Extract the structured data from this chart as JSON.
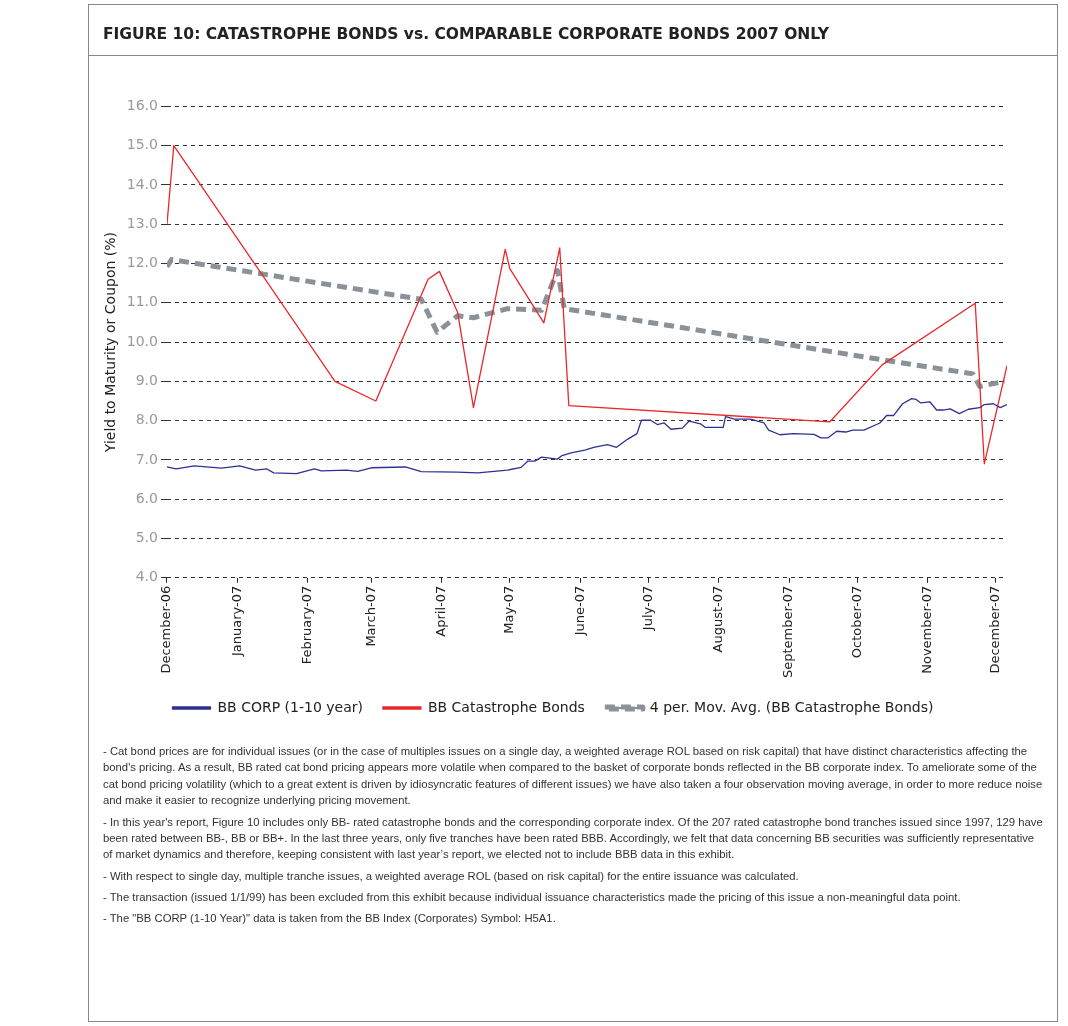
{
  "chart_data": {
    "type": "line",
    "title": "FIGURE 10: CATASTROPHE BONDS vs. COMPARABLE CORPORATE BONDS 2007 ONLY",
    "ylabel": "Yield to Maturity or Coupon (%)",
    "xlim": [
      "2006-12-01",
      "2007-12-06"
    ],
    "xticks": [
      {
        "value": "2006-12-01",
        "label": "December-06"
      },
      {
        "value": "2007-01-01",
        "label": "January-07"
      },
      {
        "value": "2007-02-01",
        "label": "February-07"
      },
      {
        "value": "2007-03-01",
        "label": "March-07"
      },
      {
        "value": "2007-04-01",
        "label": "April-07"
      },
      {
        "value": "2007-05-01",
        "label": "May-07"
      },
      {
        "value": "2007-06-01",
        "label": "June-07"
      },
      {
        "value": "2007-07-01",
        "label": "July-07"
      },
      {
        "value": "2007-08-01",
        "label": "August-07"
      },
      {
        "value": "2007-09-01",
        "label": "September-07"
      },
      {
        "value": "2007-10-01",
        "label": "October-07"
      },
      {
        "value": "2007-11-01",
        "label": "November-07"
      },
      {
        "value": "2007-12-01",
        "label": "December-07"
      }
    ],
    "ylim": [
      4,
      16
    ],
    "yticks": [
      {
        "value": 4,
        "label": "4.0"
      },
      {
        "value": 5,
        "label": "5.0"
      },
      {
        "value": 6,
        "label": "6.0"
      },
      {
        "value": 7,
        "label": "7.0"
      },
      {
        "value": 8,
        "label": "8.0"
      },
      {
        "value": 9,
        "label": "9.0"
      },
      {
        "value": 10,
        "label": "10.0"
      },
      {
        "value": 11,
        "label": "11.0"
      },
      {
        "value": 12,
        "label": "12.0"
      },
      {
        "value": 13,
        "label": "13.0"
      },
      {
        "value": 14,
        "label": "14.0"
      },
      {
        "value": 15,
        "label": "15.0"
      },
      {
        "value": 16,
        "label": "16.0"
      }
    ],
    "grid": "y",
    "legend": "bottom",
    "marker": "none",
    "series": [
      {
        "name": "BB CORP (1-10 year)",
        "color": "#2e3192",
        "line_style": "solid",
        "x": [
          "2006-12-01",
          "2006-12-05",
          "2006-12-13",
          "2006-12-25",
          "2007-01-02",
          "2007-01-09",
          "2007-01-14",
          "2007-01-17",
          "2007-01-27",
          "2007-02-04",
          "2007-02-07",
          "2007-02-18",
          "2007-02-23",
          "2007-03-01",
          "2007-03-16",
          "2007-03-23",
          "2007-04-08",
          "2007-04-17",
          "2007-04-30",
          "2007-05-06",
          "2007-05-09",
          "2007-05-12",
          "2007-05-15",
          "2007-05-22",
          "2007-05-24",
          "2007-05-28",
          "2007-06-03",
          "2007-06-07",
          "2007-06-13",
          "2007-06-17",
          "2007-06-22",
          "2007-06-26",
          "2007-06-28",
          "2007-07-02",
          "2007-07-05",
          "2007-07-08",
          "2007-07-11",
          "2007-07-16",
          "2007-07-19",
          "2007-07-24",
          "2007-07-26",
          "2007-08-03",
          "2007-08-04",
          "2007-08-08",
          "2007-08-15",
          "2007-08-21",
          "2007-08-23",
          "2007-08-28",
          "2007-09-03",
          "2007-09-12",
          "2007-09-15",
          "2007-09-18",
          "2007-09-22",
          "2007-09-26",
          "2007-09-29",
          "2007-10-04",
          "2007-10-11",
          "2007-10-14",
          "2007-10-17",
          "2007-10-21",
          "2007-10-25",
          "2007-10-27",
          "2007-10-29",
          "2007-11-02",
          "2007-11-05",
          "2007-11-08",
          "2007-11-11",
          "2007-11-15",
          "2007-11-19",
          "2007-11-24",
          "2007-11-26",
          "2007-11-30",
          "2007-12-03",
          "2007-12-06"
        ],
        "values": [
          6.82,
          6.77,
          6.85,
          6.79,
          6.85,
          6.74,
          6.77,
          6.67,
          6.65,
          6.77,
          6.72,
          6.74,
          6.71,
          6.8,
          6.82,
          6.7,
          6.69,
          6.67,
          6.74,
          6.81,
          6.97,
          6.97,
          7.07,
          7.02,
          7.11,
          7.18,
          7.25,
          7.32,
          7.39,
          7.32,
          7.53,
          7.67,
          8.01,
          8.01,
          7.9,
          7.94,
          7.78,
          7.81,
          7.99,
          7.92,
          7.83,
          7.83,
          8.1,
          8.04,
          8.04,
          7.94,
          7.76,
          7.64,
          7.67,
          7.65,
          7.56,
          7.56,
          7.73,
          7.71,
          7.76,
          7.76,
          7.94,
          8.13,
          8.13,
          8.43,
          8.56,
          8.54,
          8.45,
          8.48,
          8.27,
          8.27,
          8.3,
          8.18,
          8.29,
          8.33,
          8.41,
          8.43,
          8.33,
          8.41
        ]
      },
      {
        "name": "BB Catastrophe Bonds",
        "color": "#e8282b",
        "line_style": "solid",
        "x": [
          "2006-12-01",
          "2006-12-04",
          "2007-02-13",
          "2007-03-03",
          "2007-03-26",
          "2007-03-31",
          "2007-04-08",
          "2007-04-15",
          "2007-04-29",
          "2007-05-01",
          "2007-05-16",
          "2007-05-23",
          "2007-05-27",
          "2007-09-19",
          "2007-10-12",
          "2007-11-22",
          "2007-11-26",
          "2007-12-06"
        ],
        "values": [
          13.0,
          15.0,
          9.0,
          8.5,
          11.6,
          11.8,
          10.76,
          8.33,
          12.36,
          11.87,
          10.49,
          12.4,
          8.38,
          7.97,
          9.42,
          10.99,
          6.9,
          9.4
        ]
      },
      {
        "name": "4 per. Mov. Avg. (BB Catastrophe Bonds)",
        "color": "#8a9199",
        "line_style": "dashed",
        "x": [
          "2006-12-01",
          "2006-12-03",
          "2007-03-23",
          "2007-03-30",
          "2007-04-08",
          "2007-04-15",
          "2007-04-30",
          "2007-05-15",
          "2007-05-22",
          "2007-05-25",
          "2007-10-13",
          "2007-11-21",
          "2007-11-24",
          "2007-12-05"
        ],
        "values": [
          11.92,
          12.1,
          11.09,
          10.25,
          10.67,
          10.62,
          10.85,
          10.81,
          11.82,
          10.85,
          9.54,
          9.19,
          8.87,
          9.0
        ]
      }
    ],
    "annotations": [
      "- Cat bond prices are for individual issues (or in the case of multiples issues on a single day, a weighted average ROL based on risk capital) that have distinct characteristics affecting the bond's pricing.  As a result, BB rated cat bond pricing appears more volatile when compared to the basket of corporate bonds reflected in the BB corporate index.  To ameliorate some of the cat bond pricing volatility (which to a great extent is driven by idiosyncratic features of different issues) we have also taken a four observation moving average, in order to more reduce noise and make it easier to recognize underlying pricing movement.",
      "- In this year's report, Figure 10 includes only BB- rated catastrophe bonds and the corresponding corporate index.  Of the 207 rated catastrophe bond tranches issued since 1997, 129 have been rated between BB-, BB or BB+.  In the last three years, only five tranches have been rated BBB.  Accordingly, we felt that data concerning BB securities was sufficiently representative of market dynamics and therefore, keeping consistent with last year’s report, we elected not to include BBB data in this exhibit.",
      "- With respect to single day, multiple tranche issues, a weighted average ROL (based on risk capital) for the entire issuance was calculated.",
      "- The transaction (issued 1/1/99) has been excluded from this exhibit because individual issuance characteristics made the pricing of this issue a non-meaningful data point.",
      "- The \"BB CORP (1-10 Year)\" data is taken from the BB Index (Corporates) Symbol: H5A1."
    ]
  }
}
